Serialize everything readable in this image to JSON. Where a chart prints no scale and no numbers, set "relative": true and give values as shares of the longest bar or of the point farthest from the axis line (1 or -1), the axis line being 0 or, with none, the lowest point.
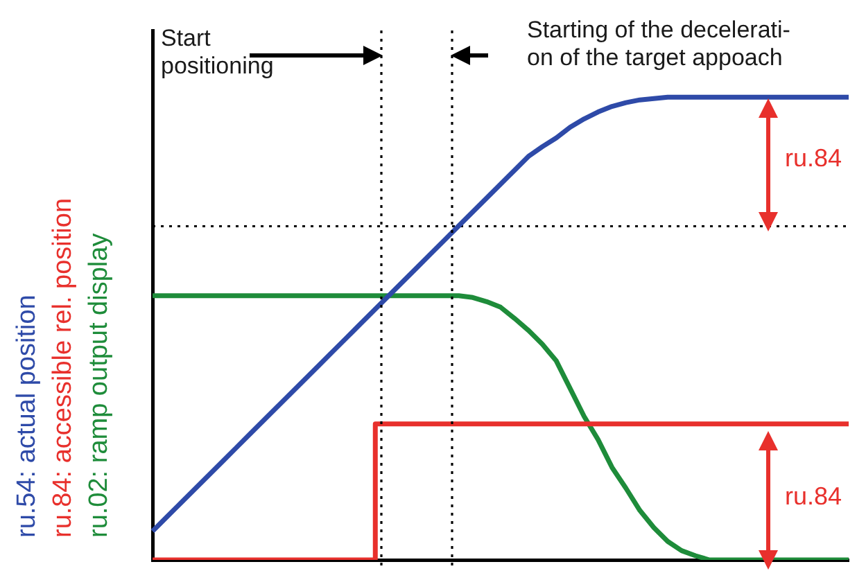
{
  "chart_data": {
    "type": "line",
    "relative": true,
    "legend": "left",
    "marker": "none",
    "line_style": "solid",
    "grid": false,
    "categories": [
      null,
      null,
      null,
      null,
      null,
      null,
      null,
      null,
      null,
      null,
      null,
      null,
      null,
      null,
      null,
      null,
      null,
      null,
      null,
      null,
      null,
      null,
      null,
      null,
      null,
      null,
      null,
      null,
      null,
      null,
      null,
      null,
      null,
      null,
      null,
      null,
      null,
      null,
      null,
      null,
      null,
      null,
      null,
      null,
      null,
      null,
      null,
      null,
      null,
      null,
      null
    ],
    "series": [
      {
        "name": "ru.54: actual position",
        "color": "#2e4aa8",
        "values": [
          0.062,
          0.092,
          0.122,
          0.152,
          0.182,
          0.212,
          0.242,
          0.272,
          0.302,
          0.332,
          0.362,
          0.392,
          0.422,
          0.452,
          0.482,
          0.512,
          0.542,
          0.572,
          0.602,
          0.632,
          0.662,
          0.692,
          0.722,
          0.752,
          0.782,
          0.812,
          0.842,
          0.872,
          0.893,
          0.912,
          0.935,
          0.953,
          0.968,
          0.98,
          0.988,
          0.994,
          0.997,
          1,
          1,
          1,
          1,
          1,
          1,
          1,
          1,
          1,
          1,
          1,
          1,
          1,
          1
        ]
      },
      {
        "name": "ru.84: accessible rel. position",
        "color": "#e8302c",
        "type": "step",
        "values": [
          0,
          0,
          0,
          0,
          0,
          0,
          0,
          0,
          0,
          0,
          0,
          0,
          0,
          0,
          0,
          0,
          0,
          0.294,
          0.294,
          0.294,
          0.294,
          0.294,
          0.294,
          0.294,
          0.294,
          0.294,
          0.294,
          0.294,
          0.294,
          0.294,
          0.294,
          0.294,
          0.294,
          0.294,
          0.294,
          0.294,
          0.294,
          0.294,
          0.294,
          0.294,
          0.294,
          0.294,
          0.294,
          0.294,
          0.294,
          0.294,
          0.294,
          0.294,
          0.294,
          0.294,
          0.294
        ]
      },
      {
        "name": "ru.02: ramp output display",
        "color": "#1e8c3a",
        "values": [
          0.571,
          0.571,
          0.571,
          0.571,
          0.571,
          0.571,
          0.571,
          0.571,
          0.571,
          0.571,
          0.571,
          0.571,
          0.571,
          0.571,
          0.571,
          0.571,
          0.571,
          0.571,
          0.571,
          0.571,
          0.571,
          0.571,
          0.571,
          0.567,
          0.558,
          0.546,
          0.522,
          0.496,
          0.466,
          0.43,
          0.37,
          0.31,
          0.26,
          0.2,
          0.155,
          0.107,
          0.07,
          0.04,
          0.02,
          0.009,
          0,
          0,
          0,
          0,
          0,
          0,
          0,
          0,
          0,
          0,
          0
        ]
      }
    ],
    "ref_lines": [
      {
        "axis": "y",
        "value": 0.721,
        "line_style": "dotted"
      }
    ],
    "annotations": [
      "Start\npositioning",
      "Starting of the decelerati-\non of the target appoach",
      "ru.84",
      "ru.84"
    ]
  }
}
